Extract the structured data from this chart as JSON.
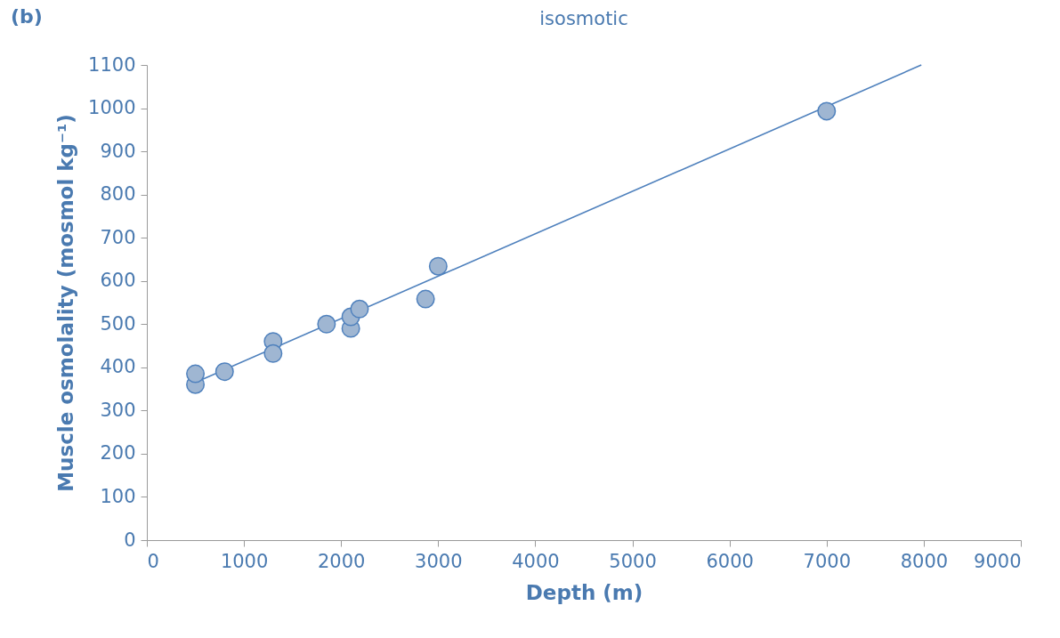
{
  "chart_data": {
    "type": "scatter",
    "title": "isosmotic",
    "annotations": [
      "(b)"
    ],
    "xlabel": "Depth (m)",
    "ylabel": "Muscle osmolality (mosmol kg⁻¹)",
    "xlim": [
      0,
      9000
    ],
    "xticks": [
      0,
      1000,
      2000,
      3000,
      4000,
      5000,
      6000,
      7000,
      8000,
      9000
    ],
    "ylim": [
      0,
      1100
    ],
    "yticks": [
      0,
      100,
      200,
      300,
      400,
      500,
      600,
      700,
      800,
      900,
      1000,
      1100
    ],
    "grid": false,
    "series": [
      {
        "type": "scatter",
        "marker": "circle",
        "color": "#9fb6d2",
        "x": [
          500,
          500,
          800,
          1300,
          1300,
          1850,
          2100,
          2100,
          2190,
          2870,
          3000,
          7000
        ],
        "values": [
          360,
          385,
          390,
          460,
          432,
          500,
          490,
          517,
          535,
          558,
          634,
          993
        ]
      },
      {
        "type": "line",
        "marker": "none",
        "line_style": "solid",
        "color": "#4f81bd",
        "x": [
          500,
          7975
        ],
        "values": [
          365,
          1100
        ]
      }
    ]
  }
}
